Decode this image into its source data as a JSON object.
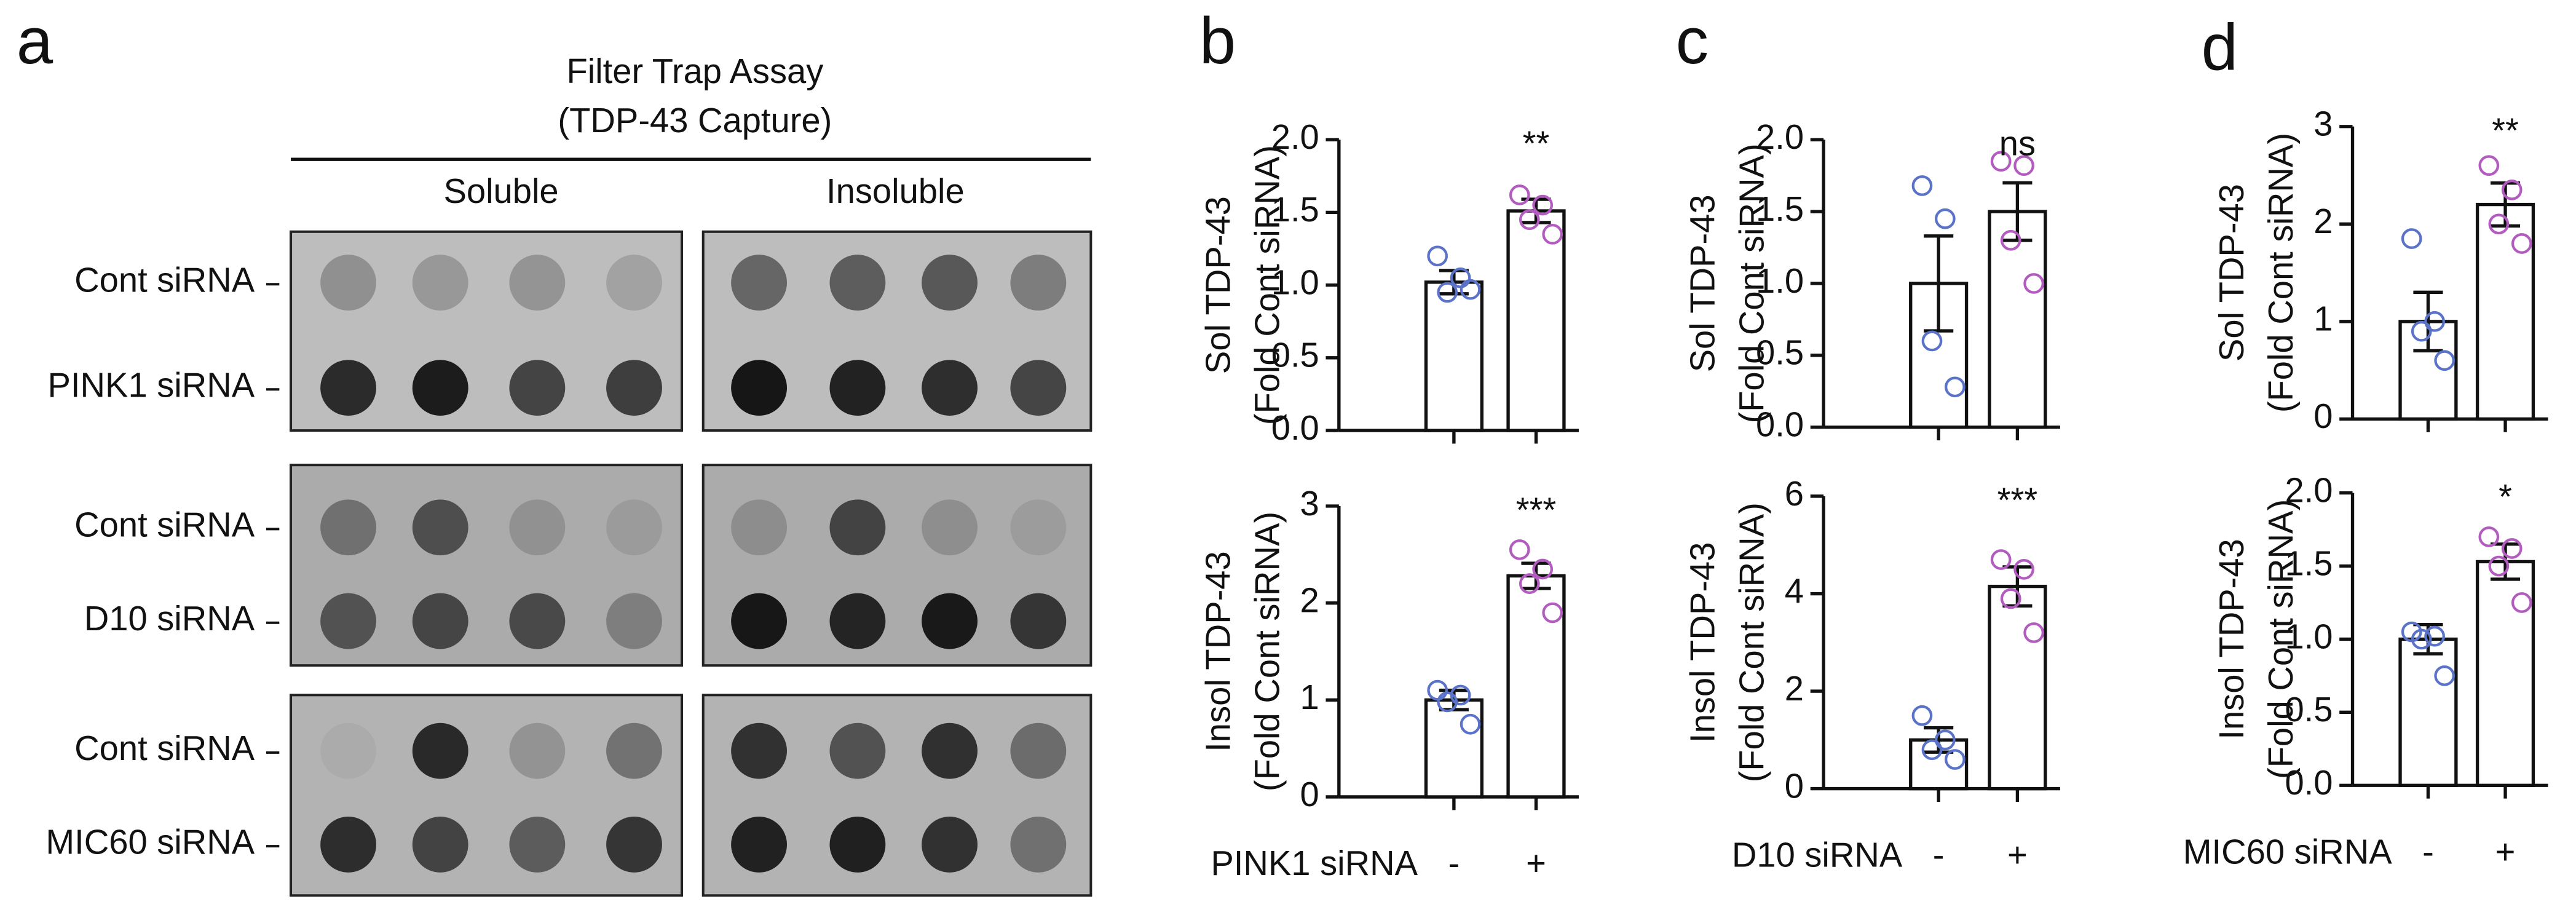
{
  "panel_labels": [
    "a",
    "b",
    "c",
    "d"
  ],
  "panel_a": {
    "title": [
      "Filter Trap Assay",
      "(TDP-43 Capture)"
    ],
    "columns": [
      "Soluble",
      "Insoluble"
    ],
    "rows": [
      "Cont siRNA",
      "PINK1 siRNA",
      "Cont siRNA",
      "D10 siRNA",
      "Cont siRNA",
      "MIC60 siRNA"
    ]
  },
  "chart_data": [
    {
      "type": "bar",
      "ylabel": [
        "Sol TDP-43",
        "(Fold Cont siRNA)"
      ],
      "categories": [
        null,
        null
      ],
      "values": [
        1.02,
        1.51
      ],
      "errors": [
        0.08,
        0.08
      ],
      "points": [
        [
          1.2,
          1.05,
          0.95,
          0.97
        ],
        [
          1.62,
          1.55,
          1.45,
          1.35
        ]
      ],
      "color": "#ffffff",
      "point_colors": [
        "#5a72c8",
        "#b35cbf"
      ],
      "annotation": "**",
      "ylim": [
        0,
        2
      ],
      "yticks": [
        {
          "value": 0,
          "label": "0.0"
        },
        0.5,
        {
          "value": 1,
          "label": "1.0"
        },
        1.5,
        {
          "value": 2,
          "label": "2.0"
        }
      ]
    },
    {
      "type": "bar",
      "ylabel": [
        "Insol TDP-43",
        "(Fold Cont siRNA)"
      ],
      "xlabel": "PINK1 siRNA",
      "categories": [
        "-",
        "+"
      ],
      "values": [
        1.0,
        2.28
      ],
      "errors": [
        0.1,
        0.13
      ],
      "points": [
        [
          1.1,
          1.05,
          0.98,
          0.75
        ],
        [
          2.55,
          2.35,
          2.2,
          1.9
        ]
      ],
      "color": "#ffffff",
      "point_colors": [
        "#5a72c8",
        "#b35cbf"
      ],
      "annotation": "***",
      "ylim": [
        0,
        3
      ],
      "yticks": [
        0,
        1,
        2,
        3
      ]
    },
    {
      "type": "bar",
      "ylabel": [
        "Sol TDP-43",
        "(Fold Cont siRNA)"
      ],
      "categories": [
        null,
        null
      ],
      "values": [
        1.0,
        1.5
      ],
      "errors": [
        0.33,
        0.2
      ],
      "points": [
        [
          1.68,
          1.45,
          0.6,
          0.28
        ],
        [
          1.85,
          1.82,
          1.3,
          1.0
        ]
      ],
      "color": "#ffffff",
      "point_colors": [
        "#5a72c8",
        "#b35cbf"
      ],
      "annotation": "ns",
      "ylim": [
        0,
        2
      ],
      "yticks": [
        {
          "value": 0,
          "label": "0.0"
        },
        0.5,
        {
          "value": 1,
          "label": "1.0"
        },
        1.5,
        {
          "value": 2,
          "label": "2.0"
        }
      ]
    },
    {
      "type": "bar",
      "ylabel": [
        "Insol TDP-43",
        "(Fold Cont siRNA)"
      ],
      "xlabel": "D10 siRNA",
      "categories": [
        "-",
        "+"
      ],
      "values": [
        1.0,
        4.15
      ],
      "errors": [
        0.25,
        0.4
      ],
      "points": [
        [
          1.5,
          1.0,
          0.8,
          0.6
        ],
        [
          4.7,
          4.5,
          3.9,
          3.2
        ]
      ],
      "color": "#ffffff",
      "point_colors": [
        "#5a72c8",
        "#b35cbf"
      ],
      "annotation": "***",
      "ylim": [
        0,
        6
      ],
      "yticks": [
        0,
        2,
        4,
        6
      ]
    },
    {
      "type": "bar",
      "ylabel": [
        "Sol TDP-43",
        "(Fold Cont siRNA)"
      ],
      "categories": [
        null,
        null
      ],
      "values": [
        1.0,
        2.2
      ],
      "errors": [
        0.3,
        0.22
      ],
      "points": [
        [
          1.85,
          1.0,
          0.9,
          0.6
        ],
        [
          2.6,
          2.35,
          2.0,
          1.8
        ]
      ],
      "color": "#ffffff",
      "point_colors": [
        "#5a72c8",
        "#b35cbf"
      ],
      "annotation": "**",
      "ylim": [
        0,
        3
      ],
      "yticks": [
        0,
        1,
        2,
        3
      ]
    },
    {
      "type": "bar",
      "ylabel": [
        "Insol TDP-43",
        "(Fold Cont siRNA)"
      ],
      "xlabel": "MIC60 siRNA",
      "categories": [
        "-",
        "+"
      ],
      "values": [
        1.0,
        1.53
      ],
      "errors": [
        0.1,
        0.12
      ],
      "points": [
        [
          1.05,
          1.02,
          1.0,
          0.75
        ],
        [
          1.7,
          1.62,
          1.5,
          1.25
        ]
      ],
      "color": "#ffffff",
      "point_colors": [
        "#5a72c8",
        "#b35cbf"
      ],
      "annotation": "*",
      "ylim": [
        0,
        2
      ],
      "yticks": [
        {
          "value": 0,
          "label": "0.0"
        },
        0.5,
        {
          "value": 1,
          "label": "1.0"
        },
        1.5,
        {
          "value": 2,
          "label": "2.0"
        }
      ]
    }
  ]
}
